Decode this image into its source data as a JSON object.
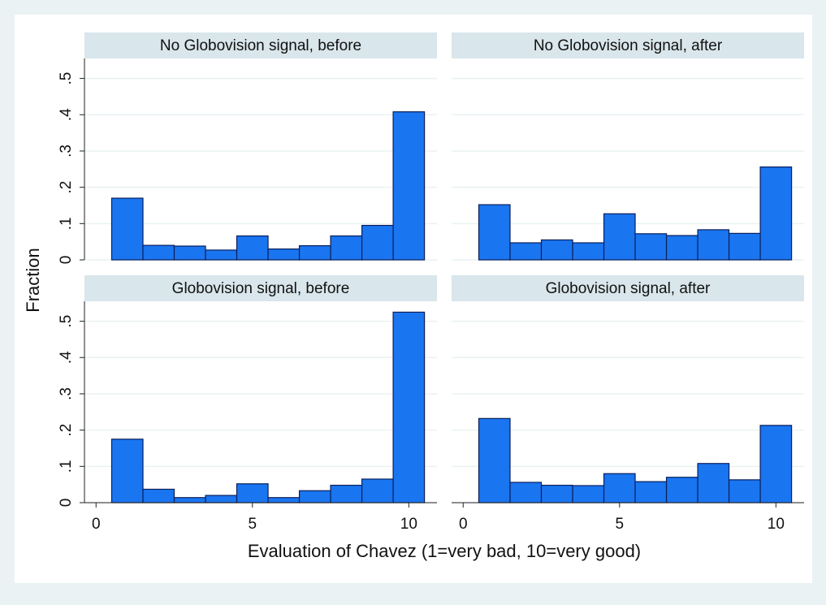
{
  "figure": {
    "xlabel": "Evaluation of Chavez (1=very bad, 10=very good)",
    "ylabel": "Fraction"
  },
  "chart_data": [
    {
      "type": "histogram",
      "title": "No Globovision signal, before",
      "color": "#1a75f0",
      "bins": [
        0.5,
        1.5,
        2.5,
        3.5,
        4.5,
        5.5,
        6.5,
        7.5,
        8.5,
        9.5,
        10.5
      ],
      "values": [
        0.17,
        0.04,
        0.038,
        0.027,
        0.066,
        0.03,
        0.039,
        0.066,
        0.095,
        0.408
      ],
      "xlim": [
        -0.37,
        10.9
      ],
      "ylim": [
        0,
        0.555
      ],
      "yticks": [
        0,
        {
          "value": 0.1,
          "label": ".1"
        },
        {
          "value": 0.2,
          "label": ".2"
        },
        {
          "value": 0.3,
          "label": ".3"
        },
        {
          "value": 0.4,
          "label": ".4"
        },
        {
          "value": 0.5,
          "label": ".5"
        }
      ],
      "grid": true
    },
    {
      "type": "histogram",
      "title": "No Globovision signal, after",
      "color": "#1a75f0",
      "bins": [
        0.5,
        1.5,
        2.5,
        3.5,
        4.5,
        5.5,
        6.5,
        7.5,
        8.5,
        9.5,
        10.5
      ],
      "values": [
        0.152,
        0.047,
        0.055,
        0.047,
        0.127,
        0.072,
        0.067,
        0.083,
        0.073,
        0.256
      ],
      "xlim": [
        -0.37,
        10.9
      ],
      "ylim": [
        0,
        0.555
      ],
      "yticks": [
        0,
        0.1,
        0.2,
        0.3,
        0.4,
        0.5
      ],
      "grid": true
    },
    {
      "type": "histogram",
      "title": "Globovision signal, before",
      "color": "#1a75f0",
      "bins": [
        0.5,
        1.5,
        2.5,
        3.5,
        4.5,
        5.5,
        6.5,
        7.5,
        8.5,
        9.5,
        10.5
      ],
      "values": [
        0.175,
        0.037,
        0.014,
        0.02,
        0.052,
        0.014,
        0.033,
        0.048,
        0.065,
        0.525
      ],
      "xlim": [
        -0.37,
        10.9
      ],
      "ylim": [
        0,
        0.555
      ],
      "xticks": [
        0,
        5,
        10
      ],
      "yticks": [
        0,
        {
          "value": 0.1,
          "label": ".1"
        },
        {
          "value": 0.2,
          "label": ".2"
        },
        {
          "value": 0.3,
          "label": ".3"
        },
        {
          "value": 0.4,
          "label": ".4"
        },
        {
          "value": 0.5,
          "label": ".5"
        }
      ],
      "grid": true
    },
    {
      "type": "histogram",
      "title": "Globovision signal, after",
      "color": "#1a75f0",
      "bins": [
        0.5,
        1.5,
        2.5,
        3.5,
        4.5,
        5.5,
        6.5,
        7.5,
        8.5,
        9.5,
        10.5
      ],
      "values": [
        0.232,
        0.056,
        0.048,
        0.047,
        0.08,
        0.058,
        0.07,
        0.108,
        0.063,
        0.213
      ],
      "xlim": [
        -0.37,
        10.9
      ],
      "ylim": [
        0,
        0.555
      ],
      "xticks": [
        0,
        5,
        10
      ],
      "yticks": [
        0,
        0.1,
        0.2,
        0.3,
        0.4,
        0.5
      ],
      "grid": true
    }
  ]
}
